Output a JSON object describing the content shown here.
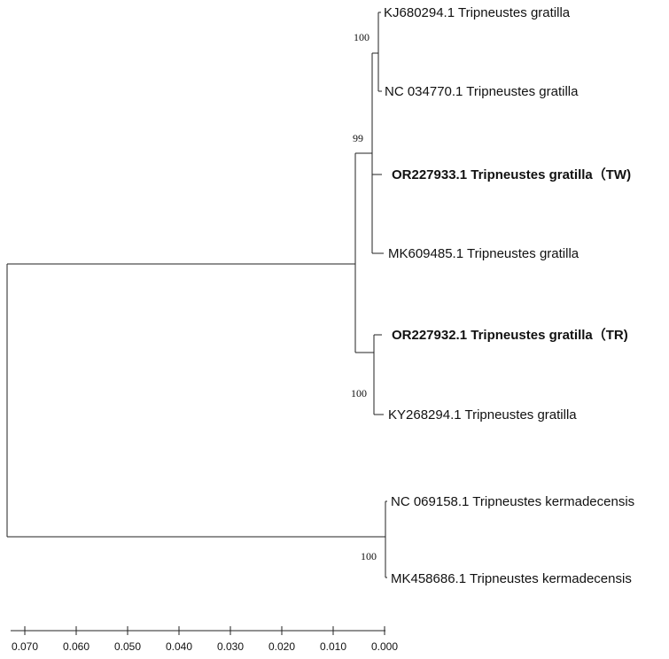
{
  "tree": {
    "leaves": [
      {
        "label": "KJ680294.1 Tripneustes gratilla",
        "bold": false
      },
      {
        "label": "NC 034770.1 Tripneustes gratilla",
        "bold": false
      },
      {
        "label": "OR227933.1 Tripneustes gratilla（TW)",
        "bold": true
      },
      {
        "label": "MK609485.1 Tripneustes gratilla",
        "bold": false
      },
      {
        "label": "OR227932.1 Tripneustes gratilla（TR)",
        "bold": true
      },
      {
        "label": "KY268294.1 Tripneustes gratilla",
        "bold": false
      },
      {
        "label": "NC 069158.1 Tripneustes kermadecensis",
        "bold": false
      },
      {
        "label": "MK458686.1 Tripneustes kermadecensis",
        "bold": false
      }
    ],
    "support_values": {
      "kj_nc_clade": "100",
      "tw_clade": "99",
      "tr_clade": "100",
      "kermadecensis_clade": "100"
    },
    "scale_axis": {
      "ticks": [
        "0.070",
        "0.060",
        "0.050",
        "0.040",
        "0.030",
        "0.020",
        "0.010",
        "0.000"
      ]
    }
  }
}
